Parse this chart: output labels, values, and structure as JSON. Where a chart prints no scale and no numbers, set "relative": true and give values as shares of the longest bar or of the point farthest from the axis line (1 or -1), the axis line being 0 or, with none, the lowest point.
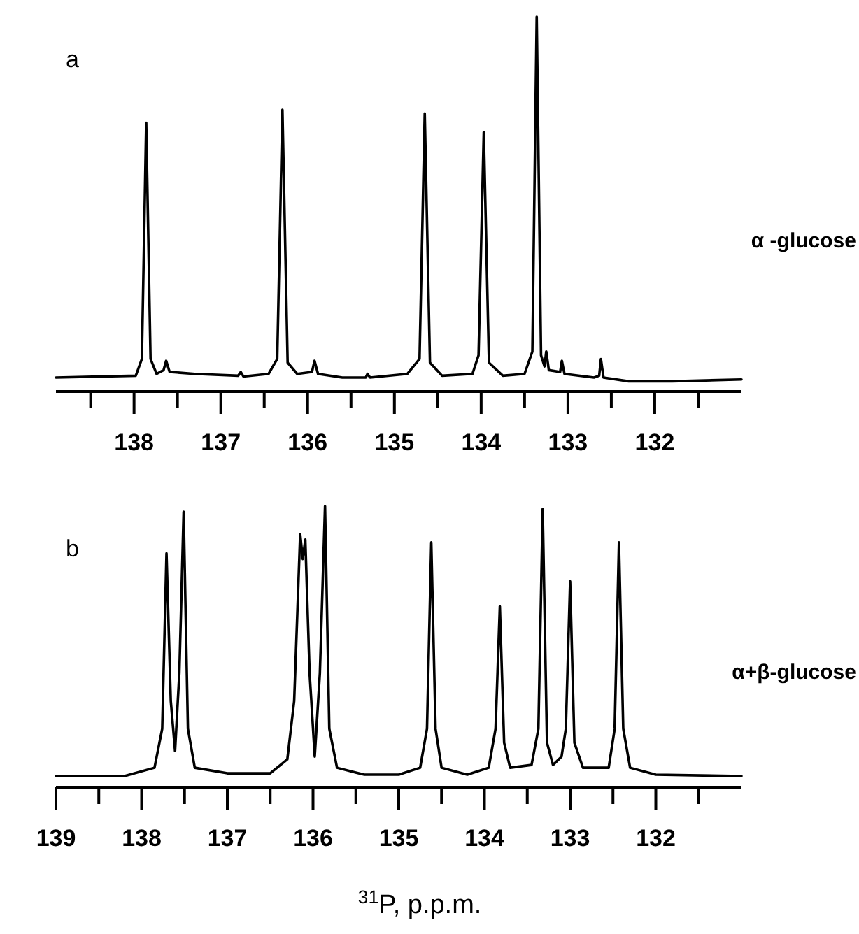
{
  "chart_data": [
    {
      "type": "line",
      "title": "a",
      "relative": true,
      "xlim": [
        138.9,
        131.0
      ],
      "xticks": [
        {
          "value": 138.5,
          "label": null
        },
        138,
        {
          "value": 137.5,
          "label": null
        },
        137,
        {
          "value": 136.5,
          "label": null
        },
        136,
        {
          "value": 135.5,
          "label": null
        },
        135,
        {
          "value": 134.5,
          "label": null
        },
        134,
        {
          "value": 133.5,
          "label": null
        },
        133,
        {
          "value": 132.5,
          "label": null
        },
        132,
        {
          "value": 131.5,
          "label": null
        }
      ],
      "series": [
        {
          "name": "α -glucose",
          "color": "#000000",
          "x": [
            138.9,
            137.98,
            137.91,
            137.86,
            137.81,
            137.74,
            137.66,
            137.63,
            137.59,
            137.3,
            136.8,
            136.77,
            136.74,
            136.45,
            136.35,
            136.29,
            136.23,
            136.12,
            135.95,
            135.92,
            135.88,
            135.6,
            135.33,
            135.31,
            135.28,
            134.85,
            134.71,
            134.65,
            134.59,
            134.45,
            134.1,
            134.03,
            133.97,
            133.91,
            133.75,
            133.5,
            133.41,
            133.36,
            133.31,
            133.27,
            133.25,
            133.22,
            133.09,
            133.07,
            133.04,
            132.7,
            132.64,
            132.62,
            132.59,
            132.3,
            131.8,
            131.0
          ],
          "values": [
            0.03,
            0.035,
            0.08,
            0.715,
            0.08,
            0.04,
            0.05,
            0.075,
            0.045,
            0.04,
            0.035,
            0.045,
            0.033,
            0.04,
            0.08,
            0.75,
            0.07,
            0.04,
            0.045,
            0.075,
            0.04,
            0.03,
            0.03,
            0.04,
            0.03,
            0.04,
            0.08,
            0.74,
            0.07,
            0.035,
            0.04,
            0.09,
            0.69,
            0.07,
            0.035,
            0.04,
            0.1,
            1.0,
            0.09,
            0.06,
            0.1,
            0.05,
            0.045,
            0.075,
            0.04,
            0.03,
            0.035,
            0.08,
            0.03,
            0.02,
            0.02,
            0.025
          ]
        }
      ]
    },
    {
      "type": "line",
      "title": "b",
      "relative": true,
      "xlabel": "$^{31}$P, p.p.m.",
      "xlim": [
        139.0,
        131.0
      ],
      "xticks": [
        139,
        {
          "value": 138.5,
          "label": null
        },
        138,
        {
          "value": 137.5,
          "label": null
        },
        137,
        {
          "value": 136.5,
          "label": null
        },
        136,
        {
          "value": 135.5,
          "label": null
        },
        135,
        {
          "value": 134.5,
          "label": null
        },
        134,
        {
          "value": 133.5,
          "label": null
        },
        133,
        {
          "value": 132.5,
          "label": null
        },
        132,
        {
          "value": 131.5,
          "label": null
        }
      ],
      "series": [
        {
          "name": "α+β-glucose",
          "color": "#000000",
          "x": [
            139.0,
            138.2,
            137.85,
            137.76,
            137.71,
            137.66,
            137.61,
            137.56,
            137.51,
            137.46,
            137.38,
            137.0,
            136.5,
            136.3,
            136.22,
            136.15,
            136.12,
            136.09,
            136.04,
            135.98,
            135.92,
            135.86,
            135.81,
            135.72,
            135.4,
            135.0,
            134.75,
            134.67,
            134.62,
            134.57,
            134.5,
            134.2,
            133.95,
            133.87,
            133.82,
            133.77,
            133.7,
            133.45,
            133.37,
            133.32,
            133.27,
            133.2,
            133.1,
            133.05,
            133.0,
            132.95,
            132.85,
            132.55,
            132.48,
            132.43,
            132.38,
            132.3,
            132.0,
            131.0
          ],
          "values": [
            0.03,
            0.03,
            0.06,
            0.2,
            0.83,
            0.3,
            0.12,
            0.4,
            0.98,
            0.2,
            0.06,
            0.04,
            0.04,
            0.09,
            0.3,
            0.9,
            0.81,
            0.88,
            0.4,
            0.1,
            0.4,
            1.0,
            0.2,
            0.06,
            0.035,
            0.035,
            0.06,
            0.2,
            0.87,
            0.2,
            0.06,
            0.035,
            0.06,
            0.2,
            0.64,
            0.15,
            0.06,
            0.07,
            0.2,
            0.99,
            0.15,
            0.07,
            0.1,
            0.2,
            0.73,
            0.15,
            0.06,
            0.06,
            0.2,
            0.87,
            0.2,
            0.06,
            0.035,
            0.03
          ]
        }
      ]
    }
  ]
}
